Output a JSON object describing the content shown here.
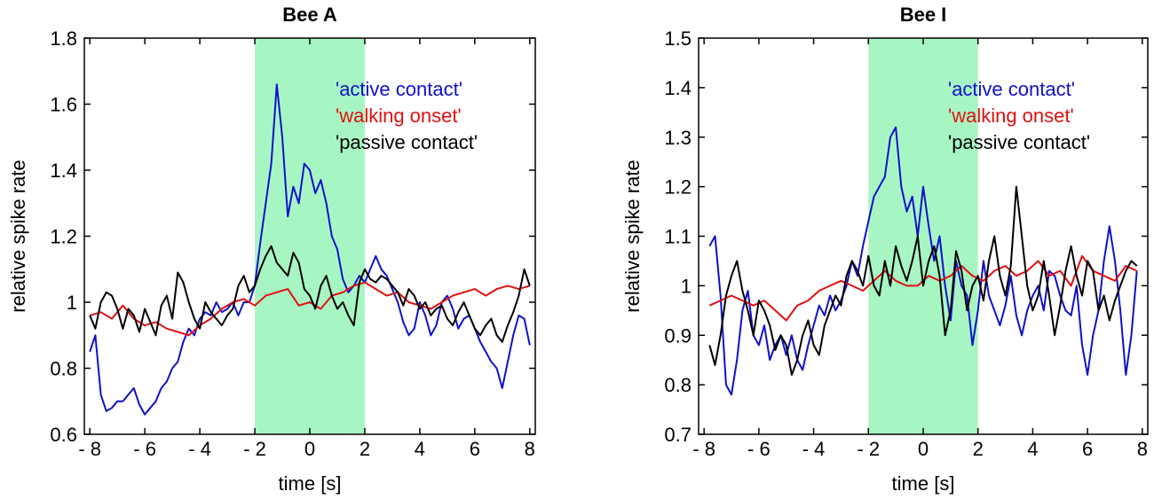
{
  "chart_data": [
    {
      "type": "line",
      "title": "Bee A",
      "xlabel": "time [s]",
      "ylabel": "relative spike rate",
      "xlim": [
        -8.2,
        8.2
      ],
      "ylim": [
        0.6,
        1.8
      ],
      "xticks": [
        -8,
        -6,
        -4,
        -2,
        0,
        2,
        4,
        6,
        8
      ],
      "xtick_labels": [
        "- 8",
        "- 6",
        "- 4",
        "- 2",
        "0",
        "2",
        "4",
        "6",
        "8"
      ],
      "yticks": [
        0.6,
        0.8,
        1.0,
        1.2,
        1.4,
        1.6,
        1.8
      ],
      "ytick_labels": [
        "0.6",
        "0.8",
        "1",
        "1.2",
        "1.4",
        "1.6",
        "1.8"
      ],
      "shaded_region": {
        "x": [
          -2,
          2
        ],
        "color": "#a8f5c4"
      },
      "legend_position": "top-right",
      "series": [
        {
          "name": "'active contact'",
          "color": "#1010cc",
          "x": [
            -8,
            -7.8,
            -7.6,
            -7.4,
            -7.2,
            -7,
            -6.8,
            -6.6,
            -6.4,
            -6.2,
            -6,
            -5.8,
            -5.6,
            -5.4,
            -5.2,
            -5,
            -4.8,
            -4.6,
            -4.4,
            -4.2,
            -4,
            -3.8,
            -3.6,
            -3.4,
            -3.2,
            -3,
            -2.8,
            -2.6,
            -2.4,
            -2.2,
            -2,
            -1.8,
            -1.6,
            -1.4,
            -1.2,
            -1,
            -0.8,
            -0.6,
            -0.4,
            -0.2,
            0,
            0.2,
            0.4,
            0.6,
            0.8,
            1,
            1.2,
            1.4,
            1.6,
            1.8,
            2,
            2.2,
            2.4,
            2.6,
            2.8,
            3,
            3.2,
            3.4,
            3.6,
            3.8,
            4,
            4.2,
            4.4,
            4.6,
            4.8,
            5,
            5.2,
            5.4,
            5.6,
            5.8,
            6,
            6.2,
            6.4,
            6.6,
            6.8,
            7,
            7.2,
            7.4,
            7.6,
            7.8,
            8
          ],
          "y": [
            0.85,
            0.9,
            0.72,
            0.67,
            0.68,
            0.7,
            0.7,
            0.72,
            0.74,
            0.69,
            0.66,
            0.68,
            0.7,
            0.74,
            0.76,
            0.8,
            0.82,
            0.88,
            0.92,
            0.9,
            0.95,
            0.97,
            0.96,
            1.0,
            0.97,
            0.98,
            1.0,
            0.96,
            1.0,
            1.0,
            1.05,
            1.18,
            1.3,
            1.42,
            1.66,
            1.5,
            1.26,
            1.35,
            1.3,
            1.42,
            1.4,
            1.33,
            1.37,
            1.3,
            1.2,
            1.16,
            1.07,
            1.03,
            1.05,
            1.08,
            1.06,
            1.1,
            1.14,
            1.1,
            1.08,
            1.04,
            1.0,
            0.94,
            0.9,
            0.92,
            1.0,
            0.96,
            0.9,
            0.93,
            1.0,
            1.02,
            0.98,
            0.92,
            0.95,
            0.96,
            0.92,
            0.88,
            0.85,
            0.82,
            0.8,
            0.74,
            0.82,
            0.9,
            0.96,
            0.95,
            0.87
          ]
        },
        {
          "name": "'walking onset'",
          "color": "#e01010",
          "x": [
            -8,
            -7.6,
            -7.2,
            -6.8,
            -6.4,
            -6,
            -5.6,
            -5.2,
            -4.8,
            -4.4,
            -4,
            -3.6,
            -3.2,
            -2.8,
            -2.4,
            -2,
            -1.6,
            -1.2,
            -0.8,
            -0.4,
            0,
            0.4,
            0.8,
            1.2,
            1.6,
            2,
            2.4,
            2.8,
            3.2,
            3.6,
            4,
            4.4,
            4.8,
            5.2,
            5.6,
            6,
            6.4,
            6.8,
            7.2,
            7.6,
            8
          ],
          "y": [
            0.96,
            0.97,
            0.95,
            0.99,
            0.95,
            0.93,
            0.94,
            0.92,
            0.91,
            0.9,
            0.93,
            0.95,
            0.98,
            1.0,
            1.01,
            0.99,
            1.02,
            1.03,
            1.04,
            0.99,
            1.0,
            0.98,
            1.02,
            1.03,
            1.05,
            1.06,
            1.04,
            1.02,
            1.03,
            1.0,
            0.99,
            0.98,
            1.0,
            1.02,
            1.03,
            1.04,
            1.02,
            1.04,
            1.05,
            1.04,
            1.05
          ]
        },
        {
          "name": "'passive contact'",
          "color": "#000000",
          "x": [
            -8,
            -7.8,
            -7.6,
            -7.4,
            -7.2,
            -7,
            -6.8,
            -6.6,
            -6.4,
            -6.2,
            -6,
            -5.8,
            -5.6,
            -5.4,
            -5.2,
            -5,
            -4.8,
            -4.6,
            -4.4,
            -4.2,
            -4,
            -3.8,
            -3.6,
            -3.4,
            -3.2,
            -3,
            -2.8,
            -2.6,
            -2.4,
            -2.2,
            -2,
            -1.8,
            -1.6,
            -1.4,
            -1.2,
            -1,
            -0.8,
            -0.6,
            -0.4,
            -0.2,
            0,
            0.2,
            0.4,
            0.6,
            0.8,
            1,
            1.2,
            1.4,
            1.6,
            1.8,
            2,
            2.2,
            2.4,
            2.6,
            2.8,
            3,
            3.2,
            3.4,
            3.6,
            3.8,
            4,
            4.2,
            4.4,
            4.6,
            4.8,
            5,
            5.2,
            5.4,
            5.6,
            5.8,
            6,
            6.2,
            6.4,
            6.6,
            6.8,
            7,
            7.2,
            7.4,
            7.6,
            7.8,
            8
          ],
          "y": [
            0.96,
            0.92,
            1.0,
            1.03,
            1.02,
            0.98,
            0.92,
            0.98,
            0.96,
            0.91,
            0.98,
            0.94,
            0.9,
            0.99,
            1.02,
            0.95,
            1.09,
            1.06,
            1.0,
            0.95,
            0.92,
            1.0,
            0.97,
            0.95,
            0.93,
            0.96,
            0.98,
            1.05,
            1.08,
            1.03,
            1.05,
            1.1,
            1.14,
            1.17,
            1.12,
            1.1,
            1.08,
            1.15,
            1.12,
            1.04,
            1.02,
            0.98,
            1.05,
            1.08,
            1.02,
            0.98,
            1.0,
            0.96,
            0.93,
            1.06,
            1.1,
            1.07,
            1.06,
            1.08,
            1.07,
            1.05,
            1.03,
            0.99,
            1.04,
            1.02,
            0.98,
            1.0,
            0.96,
            0.98,
            0.99,
            0.95,
            0.93,
            0.97,
            1.0,
            0.96,
            0.92,
            0.9,
            0.93,
            0.95,
            0.9,
            0.88,
            0.93,
            0.97,
            1.02,
            1.1,
            1.05
          ]
        }
      ]
    },
    {
      "type": "line",
      "title": "Bee I",
      "xlabel": "time [s]",
      "ylabel": "relative spike rate",
      "xlim": [
        -8.2,
        8.2
      ],
      "ylim": [
        0.7,
        1.5
      ],
      "xticks": [
        -8,
        -6,
        -4,
        -2,
        0,
        2,
        4,
        6,
        8
      ],
      "xtick_labels": [
        "- 8",
        "- 6",
        "- 4",
        "- 2",
        "0",
        "2",
        "4",
        "6",
        "8"
      ],
      "yticks": [
        0.7,
        0.8,
        0.9,
        1.0,
        1.1,
        1.2,
        1.3,
        1.4,
        1.5
      ],
      "ytick_labels": [
        "0.7",
        "0.8",
        "0.9",
        "1",
        "1.1",
        "1.2",
        "1.3",
        "1.4",
        "1.5"
      ],
      "shaded_region": {
        "x": [
          -2,
          2
        ],
        "color": "#a8f5c4"
      },
      "legend_position": "top-right",
      "series": [
        {
          "name": "'active contact'",
          "color": "#1010cc",
          "x": [
            -7.8,
            -7.6,
            -7.4,
            -7.2,
            -7,
            -6.8,
            -6.6,
            -6.4,
            -6.2,
            -6,
            -5.8,
            -5.6,
            -5.4,
            -5.2,
            -5,
            -4.8,
            -4.6,
            -4.4,
            -4.2,
            -4,
            -3.8,
            -3.6,
            -3.4,
            -3.2,
            -3,
            -2.8,
            -2.6,
            -2.4,
            -2.2,
            -2,
            -1.8,
            -1.6,
            -1.4,
            -1.2,
            -1,
            -0.8,
            -0.6,
            -0.4,
            -0.2,
            0,
            0.2,
            0.4,
            0.6,
            0.8,
            1,
            1.2,
            1.4,
            1.6,
            1.8,
            2,
            2.2,
            2.4,
            2.6,
            2.8,
            3,
            3.2,
            3.4,
            3.6,
            3.8,
            4,
            4.2,
            4.4,
            4.6,
            4.8,
            5,
            5.2,
            5.4,
            5.6,
            5.8,
            6,
            6.2,
            6.4,
            6.6,
            6.8,
            7,
            7.2,
            7.4,
            7.6,
            7.8
          ],
          "y": [
            1.08,
            1.1,
            0.98,
            0.8,
            0.78,
            0.85,
            0.95,
            0.99,
            0.9,
            0.88,
            0.92,
            0.85,
            0.88,
            0.9,
            0.86,
            0.9,
            0.85,
            0.83,
            0.88,
            0.92,
            0.96,
            0.94,
            0.98,
            0.95,
            0.97,
            1.0,
            1.05,
            1.02,
            1.08,
            1.13,
            1.18,
            1.2,
            1.22,
            1.3,
            1.32,
            1.2,
            1.15,
            1.18,
            1.1,
            1.2,
            1.12,
            1.05,
            1.1,
            1.0,
            0.93,
            1.05,
            1.0,
            0.98,
            0.88,
            0.95,
            1.05,
            0.98,
            0.95,
            0.92,
            0.96,
            1.02,
            0.94,
            0.9,
            0.95,
            0.98,
            1.0,
            0.95,
            1.03,
            1.02,
            0.98,
            0.95,
            0.94,
            1.0,
            0.88,
            0.82,
            0.9,
            0.95,
            1.05,
            1.12,
            1.05,
            0.95,
            0.82,
            0.9,
            1.03
          ]
        },
        {
          "name": "'walking onset'",
          "color": "#e01010",
          "x": [
            -7.8,
            -7.4,
            -7,
            -6.6,
            -6.2,
            -5.8,
            -5.4,
            -5,
            -4.6,
            -4.2,
            -3.8,
            -3.4,
            -3,
            -2.6,
            -2.2,
            -1.8,
            -1.4,
            -1,
            -0.6,
            -0.2,
            0.2,
            0.6,
            1,
            1.4,
            1.8,
            2.2,
            2.6,
            3,
            3.4,
            3.8,
            4.2,
            4.6,
            5,
            5.4,
            5.8,
            6.2,
            6.6,
            7,
            7.4,
            7.8
          ],
          "y": [
            0.96,
            0.97,
            0.98,
            0.97,
            0.96,
            0.97,
            0.95,
            0.93,
            0.96,
            0.97,
            0.99,
            1.0,
            1.01,
            1.0,
            0.99,
            1.01,
            1.03,
            1.01,
            1.0,
            1.0,
            1.02,
            1.01,
            1.02,
            1.04,
            1.02,
            1.01,
            1.03,
            1.04,
            1.02,
            1.03,
            1.05,
            1.02,
            1.03,
            1.0,
            1.06,
            1.03,
            1.02,
            1.01,
            1.04,
            1.03
          ]
        },
        {
          "name": "'passive contact'",
          "color": "#000000",
          "x": [
            -7.8,
            -7.6,
            -7.4,
            -7.2,
            -7,
            -6.8,
            -6.6,
            -6.4,
            -6.2,
            -6,
            -5.8,
            -5.6,
            -5.4,
            -5.2,
            -5,
            -4.8,
            -4.6,
            -4.4,
            -4.2,
            -4,
            -3.8,
            -3.6,
            -3.4,
            -3.2,
            -3,
            -2.8,
            -2.6,
            -2.4,
            -2.2,
            -2,
            -1.8,
            -1.6,
            -1.4,
            -1.2,
            -1,
            -0.8,
            -0.6,
            -0.4,
            -0.2,
            0,
            0.2,
            0.4,
            0.6,
            0.8,
            1,
            1.2,
            1.4,
            1.6,
            1.8,
            2,
            2.2,
            2.4,
            2.6,
            2.8,
            3,
            3.2,
            3.4,
            3.6,
            3.8,
            4,
            4.2,
            4.4,
            4.6,
            4.8,
            5,
            5.2,
            5.4,
            5.6,
            5.8,
            6,
            6.2,
            6.4,
            6.6,
            6.8,
            7,
            7.2,
            7.4,
            7.6,
            7.8
          ],
          "y": [
            0.88,
            0.84,
            0.9,
            0.98,
            1.02,
            1.05,
            0.99,
            0.95,
            0.9,
            0.97,
            0.95,
            0.92,
            0.87,
            0.9,
            0.88,
            0.82,
            0.85,
            0.9,
            0.93,
            0.88,
            0.86,
            0.92,
            0.95,
            0.98,
            0.96,
            1.02,
            1.05,
            1.03,
            1.0,
            1.06,
            1.0,
            0.98,
            1.05,
            1.0,
            1.08,
            1.04,
            1.01,
            1.05,
            1.1,
            1.0,
            1.05,
            1.08,
            1.02,
            0.9,
            0.95,
            1.07,
            1.03,
            0.95,
            1.0,
            1.02,
            0.97,
            1.05,
            1.1,
            1.02,
            0.98,
            1.04,
            1.2,
            1.1,
            1.0,
            0.95,
            0.98,
            1.05,
            0.98,
            0.9,
            0.96,
            1.03,
            1.08,
            1.02,
            0.98,
            1.05,
            1.03,
            0.95,
            0.98,
            0.93,
            0.97,
            1.0,
            1.03,
            1.05,
            1.04
          ]
        }
      ]
    }
  ]
}
